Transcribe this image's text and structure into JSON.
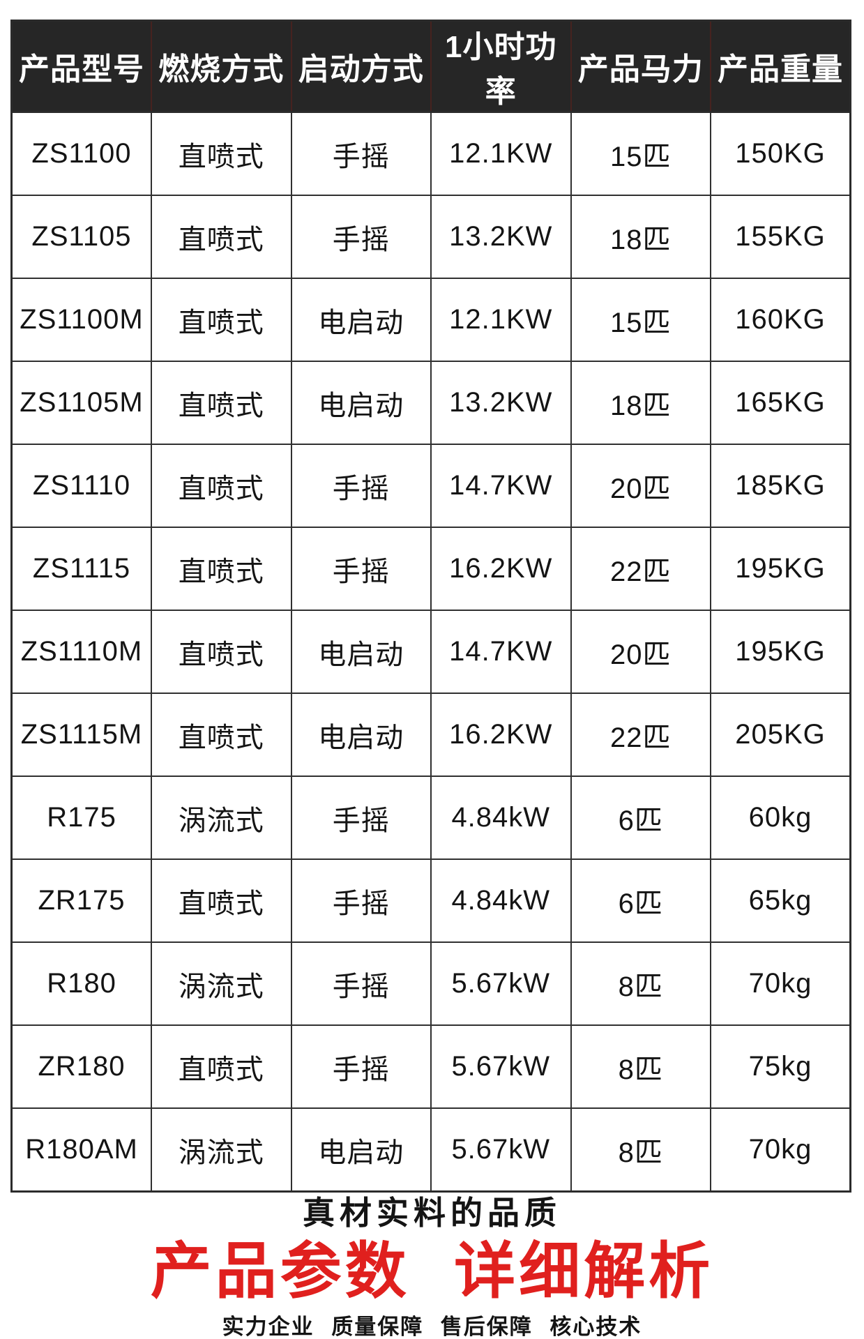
{
  "table": {
    "columns": [
      "产品型号",
      "燃烧方式",
      "启动方式",
      "1小时功率",
      "产品马力",
      "产品重量"
    ],
    "rows": [
      [
        "ZS1100",
        "直喷式",
        "手摇",
        "12.1KW",
        "15匹",
        "150KG"
      ],
      [
        "ZS1105",
        "直喷式",
        "手摇",
        "13.2KW",
        "18匹",
        "155KG"
      ],
      [
        "ZS1100M",
        "直喷式",
        "电启动",
        "12.1KW",
        "15匹",
        "160KG"
      ],
      [
        "ZS1105M",
        "直喷式",
        "电启动",
        "13.2KW",
        "18匹",
        "165KG"
      ],
      [
        "ZS1110",
        "直喷式",
        "手摇",
        "14.7KW",
        "20匹",
        "185KG"
      ],
      [
        "ZS1115",
        "直喷式",
        "手摇",
        "16.2KW",
        "22匹",
        "195KG"
      ],
      [
        "ZS1110M",
        "直喷式",
        "电启动",
        "14.7KW",
        "20匹",
        "195KG"
      ],
      [
        "ZS1115M",
        "直喷式",
        "电启动",
        "16.2KW",
        "22匹",
        "205KG"
      ],
      [
        "R175",
        "涡流式",
        "手摇",
        "4.84kW",
        "6匹",
        "60kg"
      ],
      [
        "ZR175",
        "直喷式",
        "手摇",
        "4.84kW",
        "6匹",
        "65kg"
      ],
      [
        "R180",
        "涡流式",
        "手摇",
        "5.67kW",
        "8匹",
        "70kg"
      ],
      [
        "ZR180",
        "直喷式",
        "手摇",
        "5.67kW",
        "8匹",
        "75kg"
      ],
      [
        "R180AM",
        "涡流式",
        "电启动",
        "5.67kW",
        "8匹",
        "70kg"
      ]
    ]
  },
  "footer": {
    "tagline": "真材实料的品质",
    "headline": "产品参数 详细解析",
    "subline": "实力企业 质量保障 售后保障 核心技术"
  },
  "colors": {
    "header_bg": "#262626",
    "header_text": "#ffffff",
    "accent_red": "#e0201e",
    "grid": "#303030"
  }
}
